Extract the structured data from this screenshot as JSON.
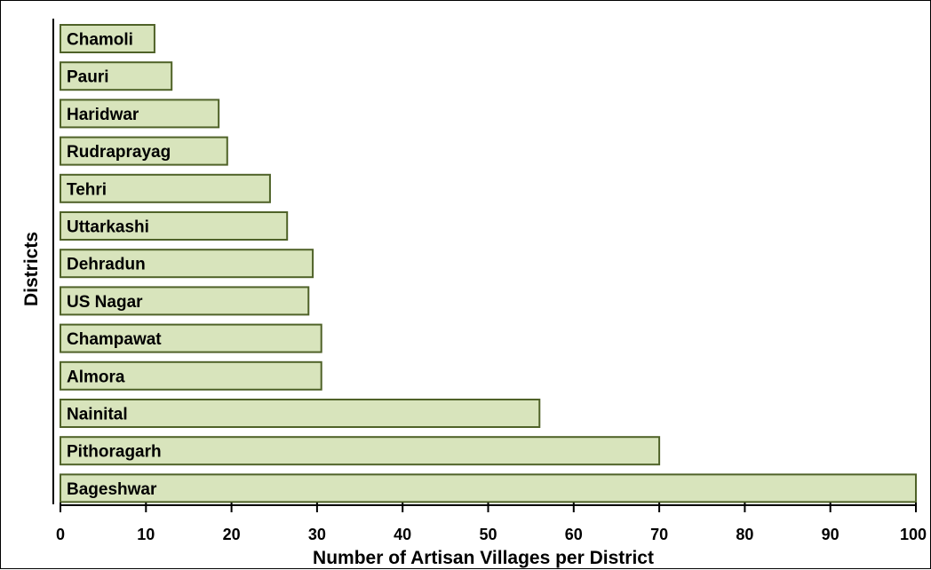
{
  "colors": {
    "bar_fill": "#d8e4bc",
    "bar_stroke": "#4f6228",
    "axis": "#000000",
    "text": "#000000",
    "background": "#ffffff"
  },
  "chart_data": {
    "type": "bar",
    "orientation": "horizontal",
    "title": "",
    "xlabel": "Number of Artisan Villages per District",
    "ylabel": "Districts",
    "xlim": [
      0,
      100
    ],
    "xticks": [
      0,
      10,
      20,
      30,
      40,
      50,
      60,
      70,
      80,
      90,
      100
    ],
    "grid": false,
    "legend": "none",
    "categories": [
      "Chamoli",
      "Pauri",
      "Haridwar",
      "Rudraprayag",
      "Tehri",
      "Uttarkashi",
      "Dehradun",
      "US Nagar",
      "Champawat",
      "Almora",
      "Nainital",
      "Pithoragarh",
      "Bageshwar"
    ],
    "values": [
      11,
      13,
      18.5,
      19.5,
      24.5,
      26.5,
      29.5,
      29,
      30.5,
      30.5,
      56,
      70,
      100
    ],
    "labels_inside_bars": true
  }
}
